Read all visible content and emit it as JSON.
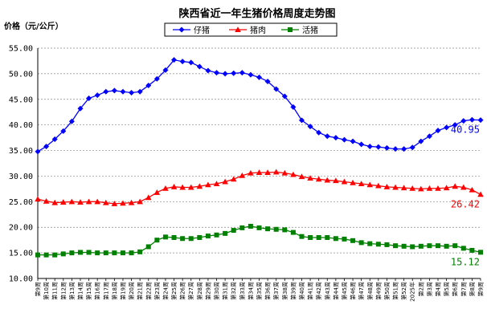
{
  "chart_data": {
    "type": "line",
    "title": "陕西省近一年生猪价格周度走势图",
    "ylabel": "价格（元/公斤）",
    "ylim": [
      10,
      55
    ],
    "yticks": [
      "10.00",
      "15.00",
      "20.00",
      "25.00",
      "30.00",
      "35.00",
      "40.00",
      "45.00",
      "50.00",
      "55.00"
    ],
    "grid": true,
    "legend_position": "top-center",
    "categories": [
      "第9周",
      "第10周",
      "第11周",
      "第12周",
      "第13周",
      "第14周",
      "第15周",
      "第16周",
      "第17周",
      "第18周",
      "第19周",
      "第20周",
      "第21周",
      "第22周",
      "第23周",
      "第24周",
      "第25周",
      "第26周",
      "第27周",
      "第28周",
      "第29周",
      "第30周",
      "第31周",
      "第32周",
      "第33周",
      "第34周",
      "第35周",
      "第36周",
      "第37周",
      "第38周",
      "第39周",
      "第40周",
      "第41周",
      "第42周",
      "第43周",
      "第44周",
      "第45周",
      "第46周",
      "第47周",
      "第48周",
      "第49周",
      "第50周",
      "第51周",
      "第52周",
      "2025年",
      "第2周",
      "第3周",
      "第4周",
      "第5周",
      "第6周",
      "第7周",
      "第8周",
      "第9周"
    ],
    "series": [
      {
        "name": "仔猪",
        "color": "#0000ff",
        "marker": "diamond",
        "end_label": "40.95",
        "values": [
          34.8,
          35.8,
          37.2,
          38.8,
          40.7,
          43.2,
          45.2,
          45.8,
          46.5,
          46.7,
          46.5,
          46.3,
          46.5,
          47.7,
          49.0,
          50.7,
          52.7,
          52.4,
          52.2,
          51.4,
          50.6,
          50.2,
          50.0,
          50.1,
          50.2,
          49.8,
          49.3,
          48.5,
          47.0,
          45.6,
          43.5,
          40.9,
          39.7,
          38.5,
          37.8,
          37.5,
          37.1,
          36.8,
          36.2,
          35.8,
          35.7,
          35.5,
          35.3,
          35.3,
          35.6,
          36.8,
          37.8,
          38.9,
          39.5,
          40.0,
          40.8,
          41.0,
          40.95
        ]
      },
      {
        "name": "猪肉",
        "color": "#ff0000",
        "marker": "triangle",
        "end_label": "26.42",
        "values": [
          25.5,
          25.1,
          24.8,
          24.9,
          25.0,
          24.9,
          25.0,
          25.0,
          24.8,
          24.6,
          24.7,
          24.8,
          25.0,
          25.8,
          26.8,
          27.6,
          27.9,
          27.8,
          27.8,
          28.0,
          28.3,
          28.5,
          28.9,
          29.4,
          30.1,
          30.6,
          30.7,
          30.7,
          30.8,
          30.6,
          30.3,
          29.9,
          29.6,
          29.4,
          29.2,
          29.1,
          28.9,
          28.7,
          28.5,
          28.3,
          28.1,
          27.9,
          27.8,
          27.7,
          27.6,
          27.5,
          27.6,
          27.6,
          27.7,
          28.0,
          27.8,
          27.3,
          26.42
        ]
      },
      {
        "name": "活猪",
        "color": "#008000",
        "marker": "square",
        "end_label": "15.12",
        "values": [
          14.6,
          14.6,
          14.6,
          14.8,
          15.0,
          15.1,
          15.1,
          15.0,
          15.0,
          15.0,
          15.0,
          15.0,
          15.2,
          16.2,
          17.5,
          18.1,
          18.0,
          17.8,
          17.8,
          18.0,
          18.3,
          18.5,
          18.8,
          19.4,
          19.9,
          20.2,
          19.9,
          19.7,
          19.6,
          19.5,
          19.0,
          18.2,
          18.0,
          18.0,
          18.0,
          17.8,
          17.7,
          17.4,
          17.0,
          16.8,
          16.7,
          16.6,
          16.4,
          16.3,
          16.2,
          16.3,
          16.4,
          16.4,
          16.3,
          16.4,
          15.9,
          15.5,
          15.12
        ]
      }
    ]
  }
}
